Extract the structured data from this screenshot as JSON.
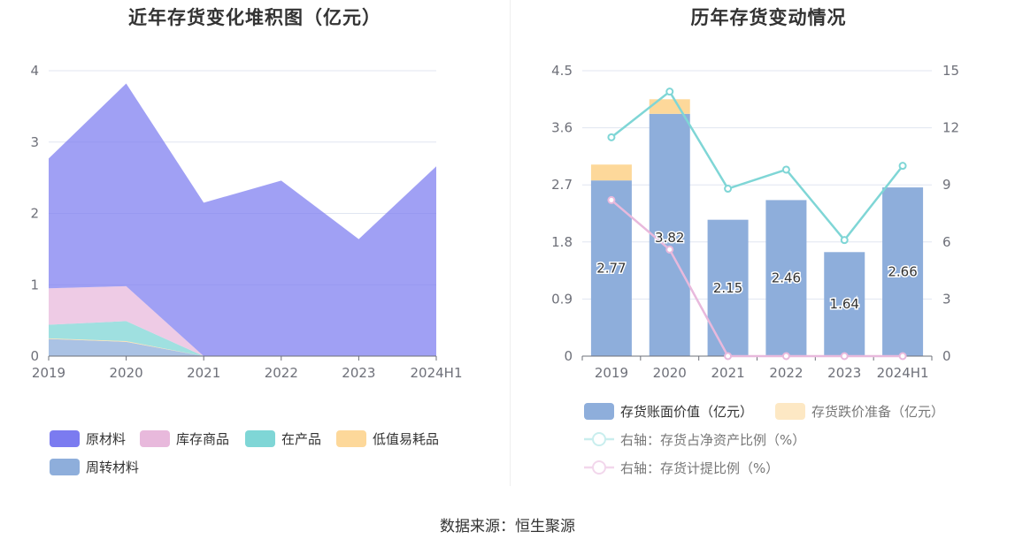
{
  "chart_data": [
    {
      "type": "area",
      "stacked": true,
      "title": "近年存货变化堆积图（亿元）",
      "categories": [
        "2019",
        "2020",
        "2021",
        "2022",
        "2023",
        "2024H1"
      ],
      "ylim": [
        0,
        4
      ],
      "yticks": [
        0,
        1,
        2,
        3,
        4
      ],
      "grid": true,
      "legend_position": "bottom",
      "series": [
        {
          "name": "原材料",
          "color": "#7b7bf0",
          "values": [
            1.82,
            2.84,
            2.15,
            2.46,
            1.64,
            2.66
          ]
        },
        {
          "name": "库存商品",
          "color": "#e8b9dc",
          "values": [
            0.51,
            0.49,
            0.0,
            0.0,
            0.0,
            0.0
          ]
        },
        {
          "name": "在产品",
          "color": "#7fd6d6",
          "values": [
            0.19,
            0.28,
            0.0,
            0.0,
            0.0,
            0.0
          ]
        },
        {
          "name": "低值易耗品",
          "color": "#fdd89a",
          "values": [
            0.01,
            0.01,
            0.0,
            0.0,
            0.0,
            0.0
          ]
        },
        {
          "name": "周转材料",
          "color": "#8eaedb",
          "values": [
            0.24,
            0.2,
            0.0,
            0.0,
            0.0,
            0.0
          ]
        }
      ]
    },
    {
      "type": "bar",
      "stacked": true,
      "title": "历年存货变动情况",
      "categories": [
        "2019",
        "2020",
        "2021",
        "2022",
        "2023",
        "2024H1"
      ],
      "ylim": [
        0,
        4.5
      ],
      "yticks": [
        "0",
        "0.9",
        "1.8",
        "2.7",
        "3.6",
        "4.5"
      ],
      "y2lim": [
        0,
        15
      ],
      "y2ticks": [
        "0",
        "3",
        "6",
        "9",
        "12",
        "15"
      ],
      "grid": true,
      "legend_position": "bottom",
      "series": [
        {
          "name": "存货账面价值（亿元）",
          "type": "bar",
          "axis": "left",
          "color": "#8eaedb",
          "values": [
            2.77,
            3.82,
            2.15,
            2.46,
            1.64,
            2.66
          ],
          "labels": [
            "2.77",
            "3.82",
            "2.15",
            "2.46",
            "1.64",
            "2.66"
          ]
        },
        {
          "name": "存货跌价准备（亿元）",
          "type": "bar",
          "axis": "left",
          "color": "#fdd89a",
          "values": [
            0.25,
            0.23,
            0.0,
            0.0,
            0.0,
            0.0
          ]
        },
        {
          "name": "右轴：存货占净资产比例（%）",
          "type": "line",
          "axis": "right",
          "color": "#7fd6d6",
          "values": [
            11.5,
            13.9,
            8.8,
            9.8,
            6.1,
            10.0
          ]
        },
        {
          "name": "右轴：存货计提比例（%）",
          "type": "line",
          "axis": "right",
          "color": "#e8b9dc",
          "values": [
            8.2,
            5.6,
            0.0,
            0.0,
            0.0,
            0.0
          ]
        }
      ]
    }
  ],
  "footer": {
    "source": "数据来源：恒生聚源"
  }
}
